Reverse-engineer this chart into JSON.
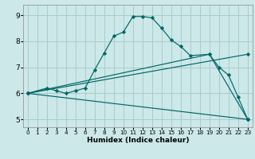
{
  "xlabel": "Humidex (Indice chaleur)",
  "bg_color": "#cce8e8",
  "grid_color": "#aacccc",
  "line_color": "#006666",
  "xlim": [
    -0.5,
    23.5
  ],
  "ylim": [
    4.7,
    9.4
  ],
  "xticks": [
    0,
    1,
    2,
    3,
    4,
    5,
    6,
    7,
    8,
    9,
    10,
    11,
    12,
    13,
    14,
    15,
    16,
    17,
    18,
    19,
    20,
    21,
    22,
    23
  ],
  "yticks": [
    5,
    6,
    7,
    8,
    9
  ],
  "series": [
    {
      "x": [
        0,
        2,
        3,
        4,
        5,
        6,
        7,
        8,
        9,
        10,
        11,
        12,
        13,
        14,
        15,
        16,
        17,
        19,
        20,
        21,
        22,
        23
      ],
      "y": [
        6.0,
        6.2,
        6.1,
        6.0,
        6.1,
        6.2,
        6.9,
        7.55,
        8.2,
        8.35,
        8.95,
        8.95,
        8.9,
        8.5,
        8.05,
        7.8,
        7.45,
        7.5,
        7.0,
        6.7,
        5.85,
        5.0
      ]
    },
    {
      "x": [
        0,
        19,
        23
      ],
      "y": [
        6.0,
        7.5,
        5.0
      ]
    },
    {
      "x": [
        0,
        23
      ],
      "y": [
        6.0,
        5.0
      ]
    },
    {
      "x": [
        0,
        23
      ],
      "y": [
        6.0,
        7.5
      ]
    }
  ]
}
